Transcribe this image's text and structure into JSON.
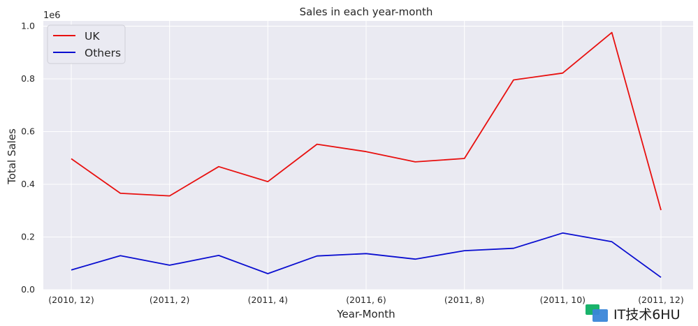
{
  "chart_data": {
    "type": "line",
    "title": "Sales in each year-month",
    "xlabel": "Year-Month",
    "ylabel": "Total Sales",
    "y_offset_label": "1e6",
    "categories": [
      "(2010, 12)",
      "(2011, 1)",
      "(2011, 2)",
      "(2011, 3)",
      "(2011, 4)",
      "(2011, 5)",
      "(2011, 6)",
      "(2011, 7)",
      "(2011, 8)",
      "(2011, 9)",
      "(2011, 10)",
      "(2011, 11)",
      "(2011, 12)"
    ],
    "x_tick_labels": [
      "(2010, 12)",
      "(2011, 2)",
      "(2011, 4)",
      "(2011, 6)",
      "(2011, 8)",
      "(2011, 10)",
      "(2011, 12)"
    ],
    "y_ticks": [
      0.0,
      0.2,
      0.4,
      0.6,
      0.8,
      1.0
    ],
    "y_tick_labels": [
      "0.0",
      "0.2",
      "0.4",
      "0.6",
      "0.8",
      "1.0"
    ],
    "ylim": [
      0,
      1.02
    ],
    "grid": true,
    "legend_position": "top-left",
    "series": [
      {
        "name": "UK",
        "color": "#e8100f",
        "values": [
          0.497,
          0.366,
          0.356,
          0.467,
          0.41,
          0.552,
          0.524,
          0.485,
          0.498,
          0.796,
          0.822,
          0.976,
          0.302
        ]
      },
      {
        "name": "Others",
        "color": "#0a0ed0",
        "values": [
          0.075,
          0.129,
          0.093,
          0.13,
          0.061,
          0.128,
          0.137,
          0.116,
          0.148,
          0.157,
          0.215,
          0.182,
          0.047
        ]
      }
    ]
  },
  "watermark": {
    "text": "IT技术6HU",
    "icon": "watermark-logo-icon"
  }
}
